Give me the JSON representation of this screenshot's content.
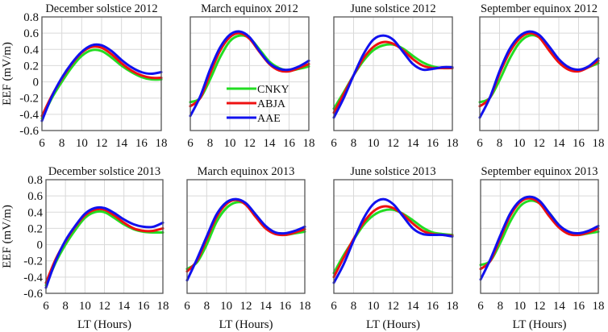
{
  "chart_data": {
    "type": "line",
    "layout": "2x4 grid of subplots",
    "shared_ylabel": "EEF (mV/m)",
    "shared_xlabel": "LT (Hours)",
    "x": [
      6,
      7,
      8,
      9,
      10,
      11,
      12,
      13,
      14,
      15,
      16,
      17,
      18
    ],
    "xlim": [
      6,
      18
    ],
    "ylim": [
      -0.6,
      0.8
    ],
    "xticks": [
      "6",
      "8",
      "10",
      "12",
      "14",
      "16",
      "18"
    ],
    "yticks": [
      "0.8",
      "0.6",
      "0.4",
      "0.2",
      "0",
      "-0.2",
      "-0.4",
      "-0.6"
    ],
    "grid": true,
    "legend": {
      "placement": "inside March equinox 2012 panel, lower-center",
      "entries": [
        {
          "name": "CNKY",
          "color": "#22dd22"
        },
        {
          "name": "ABJA",
          "color": "#ee1111"
        },
        {
          "name": "AAE",
          "color": "#1111ee"
        }
      ]
    },
    "panels": [
      {
        "title": "December solstice 2012",
        "series": [
          {
            "name": "CNKY",
            "values": [
              -0.45,
              -0.2,
              0.0,
              0.18,
              0.32,
              0.39,
              0.38,
              0.3,
              0.2,
              0.12,
              0.06,
              0.03,
              0.03
            ]
          },
          {
            "name": "ABJA",
            "values": [
              -0.42,
              -0.17,
              0.04,
              0.22,
              0.36,
              0.43,
              0.42,
              0.34,
              0.23,
              0.14,
              0.08,
              0.05,
              0.05
            ]
          },
          {
            "name": "AAE",
            "values": [
              -0.48,
              -0.18,
              0.05,
              0.23,
              0.37,
              0.45,
              0.45,
              0.38,
              0.27,
              0.18,
              0.12,
              0.1,
              0.12
            ]
          }
        ]
      },
      {
        "title": "March equinox 2012",
        "series": [
          {
            "name": "CNKY",
            "values": [
              -0.25,
              -0.2,
              0.03,
              0.3,
              0.5,
              0.57,
              0.54,
              0.4,
              0.25,
              0.17,
              0.14,
              0.16,
              0.19
            ]
          },
          {
            "name": "ABJA",
            "values": [
              -0.3,
              -0.2,
              0.1,
              0.38,
              0.55,
              0.6,
              0.53,
              0.37,
              0.22,
              0.14,
              0.13,
              0.17,
              0.22
            ]
          },
          {
            "name": "AAE",
            "values": [
              -0.42,
              -0.18,
              0.15,
              0.42,
              0.58,
              0.62,
              0.55,
              0.38,
              0.23,
              0.16,
              0.15,
              0.19,
              0.26
            ]
          }
        ]
      },
      {
        "title": "June solstice 2012",
        "series": [
          {
            "name": "CNKY",
            "values": [
              -0.33,
              -0.13,
              0.08,
              0.26,
              0.39,
              0.45,
              0.46,
              0.41,
              0.32,
              0.24,
              0.19,
              0.17,
              0.17
            ]
          },
          {
            "name": "ABJA",
            "values": [
              -0.38,
              -0.15,
              0.08,
              0.29,
              0.43,
              0.49,
              0.47,
              0.39,
              0.28,
              0.2,
              0.17,
              0.17,
              0.17
            ]
          },
          {
            "name": "AAE",
            "values": [
              -0.44,
              -0.2,
              0.08,
              0.34,
              0.52,
              0.57,
              0.52,
              0.37,
              0.22,
              0.15,
              0.16,
              0.18,
              0.18
            ]
          }
        ]
      },
      {
        "title": "September equinox 2012",
        "series": [
          {
            "name": "CNKY",
            "values": [
              -0.25,
              -0.2,
              0.02,
              0.28,
              0.48,
              0.57,
              0.55,
              0.42,
              0.27,
              0.17,
              0.14,
              0.18,
              0.23
            ]
          },
          {
            "name": "ABJA",
            "values": [
              -0.3,
              -0.2,
              0.1,
              0.36,
              0.53,
              0.6,
              0.55,
              0.39,
              0.24,
              0.15,
              0.13,
              0.18,
              0.26
            ]
          },
          {
            "name": "AAE",
            "values": [
              -0.44,
              -0.2,
              0.13,
              0.4,
              0.56,
              0.62,
              0.58,
              0.44,
              0.28,
              0.18,
              0.15,
              0.19,
              0.29
            ]
          }
        ]
      },
      {
        "title": "December solstice 2013",
        "series": [
          {
            "name": "CNKY",
            "values": [
              -0.5,
              -0.22,
              0.0,
              0.18,
              0.33,
              0.4,
              0.4,
              0.33,
              0.25,
              0.19,
              0.16,
              0.15,
              0.15
            ]
          },
          {
            "name": "ABJA",
            "values": [
              -0.47,
              -0.18,
              0.04,
              0.22,
              0.36,
              0.43,
              0.43,
              0.36,
              0.27,
              0.2,
              0.17,
              0.17,
              0.2
            ]
          },
          {
            "name": "AAE",
            "values": [
              -0.53,
              -0.2,
              0.05,
              0.23,
              0.38,
              0.45,
              0.45,
              0.39,
              0.31,
              0.25,
              0.22,
              0.22,
              0.27
            ]
          }
        ]
      },
      {
        "title": "March equinox 2013",
        "series": [
          {
            "name": "CNKY",
            "values": [
              -0.3,
              -0.22,
              0.0,
              0.28,
              0.45,
              0.52,
              0.5,
              0.37,
              0.22,
              0.14,
              0.12,
              0.14,
              0.16
            ]
          },
          {
            "name": "ABJA",
            "values": [
              -0.33,
              -0.2,
              0.07,
              0.34,
              0.5,
              0.55,
              0.49,
              0.34,
              0.2,
              0.13,
              0.12,
              0.15,
              0.19
            ]
          },
          {
            "name": "AAE",
            "values": [
              -0.44,
              -0.18,
              0.1,
              0.37,
              0.52,
              0.56,
              0.51,
              0.37,
              0.23,
              0.15,
              0.14,
              0.17,
              0.22
            ]
          }
        ]
      },
      {
        "title": "June solstice 2013",
        "series": [
          {
            "name": "CNKY",
            "values": [
              -0.35,
              -0.13,
              0.06,
              0.24,
              0.36,
              0.42,
              0.43,
              0.38,
              0.3,
              0.21,
              0.15,
              0.13,
              0.12
            ]
          },
          {
            "name": "ABJA",
            "values": [
              -0.4,
              -0.16,
              0.07,
              0.27,
              0.41,
              0.47,
              0.45,
              0.37,
              0.26,
              0.17,
              0.13,
              0.12,
              0.11
            ]
          },
          {
            "name": "AAE",
            "values": [
              -0.47,
              -0.24,
              0.05,
              0.32,
              0.5,
              0.56,
              0.5,
              0.35,
              0.2,
              0.13,
              0.12,
              0.12,
              0.1
            ]
          }
        ]
      },
      {
        "title": "September equinox 2013",
        "series": [
          {
            "name": "CNKY",
            "values": [
              -0.25,
              -0.2,
              0.02,
              0.28,
              0.47,
              0.54,
              0.51,
              0.39,
              0.24,
              0.15,
              0.12,
              0.14,
              0.16
            ]
          },
          {
            "name": "ABJA",
            "values": [
              -0.3,
              -0.2,
              0.08,
              0.35,
              0.52,
              0.57,
              0.51,
              0.35,
              0.21,
              0.13,
              0.12,
              0.15,
              0.2
            ]
          },
          {
            "name": "AAE",
            "values": [
              -0.43,
              -0.18,
              0.11,
              0.38,
              0.54,
              0.59,
              0.54,
              0.39,
              0.24,
              0.16,
              0.14,
              0.17,
              0.23
            ]
          }
        ]
      }
    ]
  }
}
